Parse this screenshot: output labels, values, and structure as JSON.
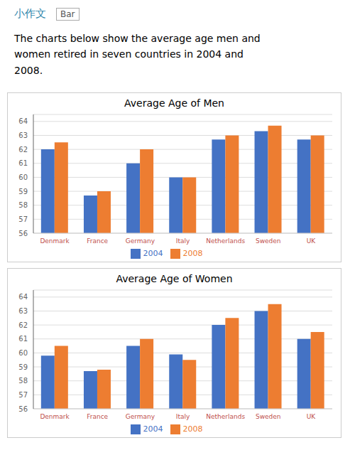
{
  "chart_data": [
    {
      "type": "bar",
      "title": "Average Age of Men",
      "annotations": [
        "小作文",
        "Bar",
        "The charts below show the average age men and\nwomen retired in seven countries in 2004 and\n2008."
      ],
      "categories": [
        "Denmark",
        "France",
        "Germany",
        "Italy",
        "Netherlands",
        "Sweden",
        "UK"
      ],
      "series": [
        {
          "name": "2004",
          "color": "#4472C4",
          "values": [
            62.0,
            58.7,
            61.0,
            60.0,
            62.7,
            63.3,
            62.7
          ]
        },
        {
          "name": "2008",
          "color": "#ED7D31",
          "values": [
            62.5,
            59.0,
            62.0,
            60.0,
            63.0,
            63.7,
            63.0
          ]
        }
      ],
      "ylim": [
        56,
        64.5
      ],
      "yticks": [
        56,
        57,
        58,
        59,
        60,
        61,
        62,
        63,
        64
      ],
      "grid": true,
      "legend": "bottom"
    },
    {
      "type": "bar",
      "title": "Average Age of Women",
      "categories": [
        "Denmark",
        "France",
        "Germany",
        "Italy",
        "Netherlands",
        "Sweden",
        "UK"
      ],
      "series": [
        {
          "name": "2004",
          "color": "#4472C4",
          "values": [
            59.8,
            58.7,
            60.5,
            59.9,
            62.0,
            63.0,
            61.0
          ]
        },
        {
          "name": "2008",
          "color": "#ED7D31",
          "values": [
            60.5,
            58.8,
            61.0,
            59.5,
            62.5,
            63.5,
            61.5
          ]
        }
      ],
      "ylim": [
        56,
        64.5
      ],
      "yticks": [
        56,
        57,
        58,
        59,
        60,
        61,
        62,
        63,
        64
      ],
      "grid": true,
      "legend": "bottom"
    }
  ]
}
